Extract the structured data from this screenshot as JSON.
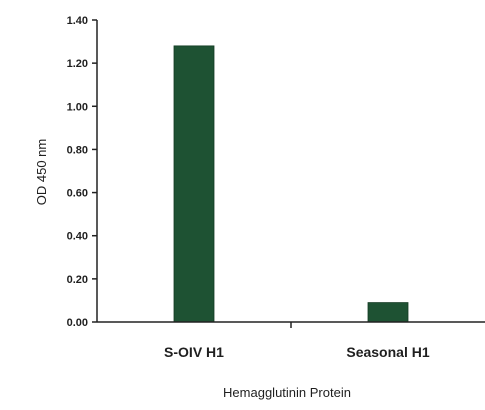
{
  "chart_data": {
    "type": "bar",
    "categories": [
      "S-OIV H1",
      "Seasonal H1"
    ],
    "values": [
      1.28,
      0.09
    ],
    "title": "",
    "xlabel": "Hemagglutinin Protein",
    "ylabel": "OD 450 nm",
    "ylim": [
      0,
      1.4
    ],
    "yticks": [
      "0.00",
      "0.20",
      "0.40",
      "0.60",
      "0.80",
      "1.00",
      "1.20",
      "1.40"
    ],
    "bar_color": "#1e5233",
    "grid": false,
    "legend": "none"
  }
}
